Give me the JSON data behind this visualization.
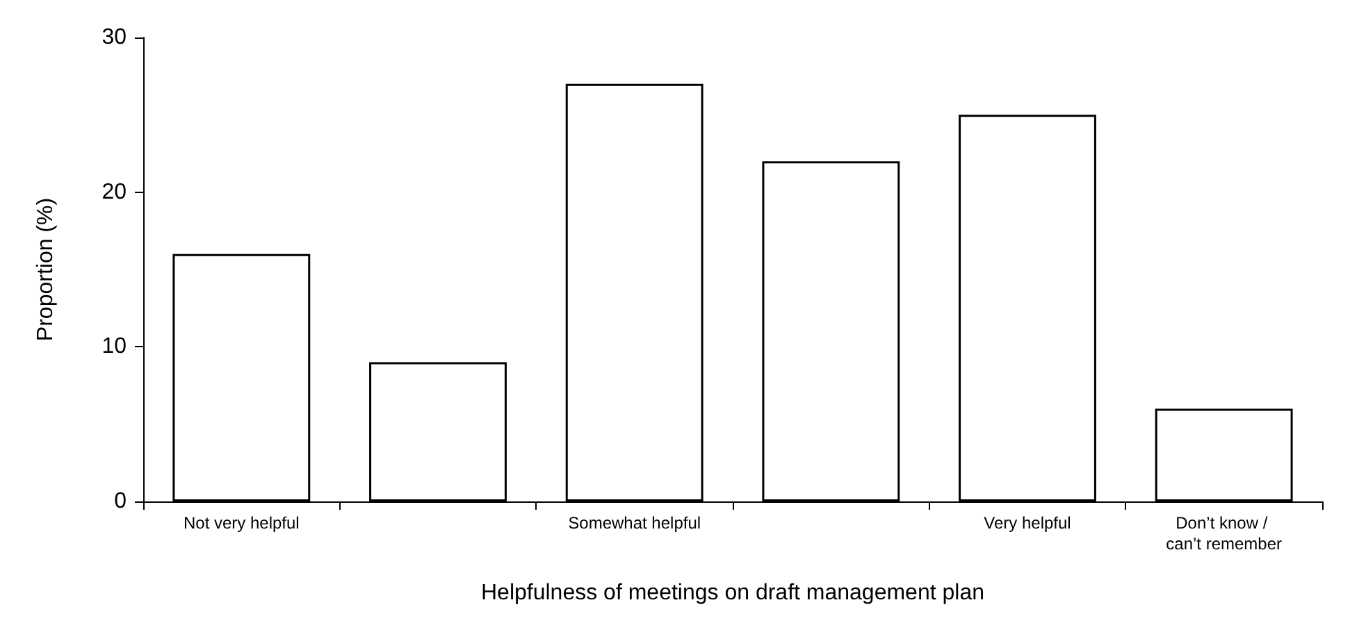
{
  "chart_data": {
    "type": "bar",
    "xlabel": "Helpfulness of meetings on draft management plan",
    "ylabel": "Proportion (%)",
    "categories": [
      "Not very helpful",
      null,
      "Somewhat helpful",
      null,
      "Very helpful",
      "Don’t know / can’t remember"
    ],
    "values": [
      16,
      9,
      27,
      22,
      25,
      6
    ],
    "color": "#ffffff",
    "ylim": [
      0,
      30
    ],
    "yticks": [
      0,
      10,
      20,
      30
    ],
    "grid": false
  }
}
